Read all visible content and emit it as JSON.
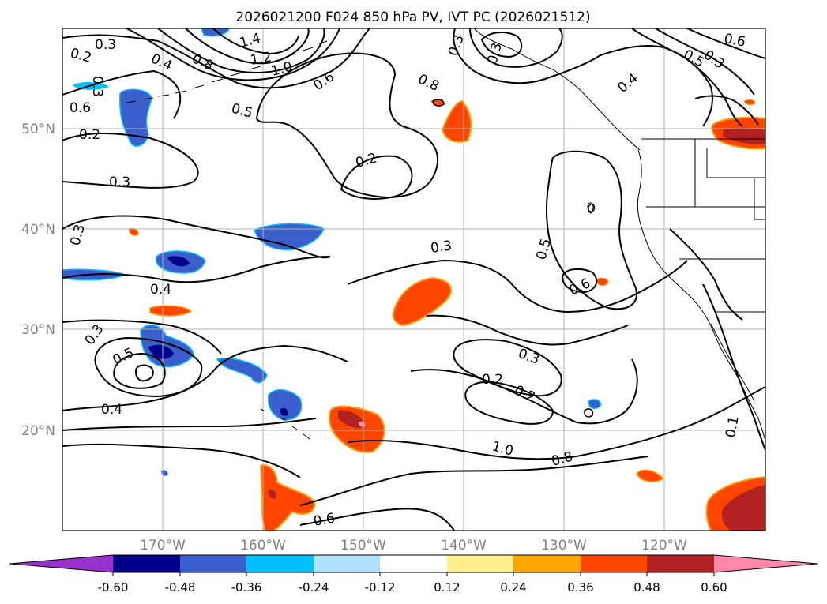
{
  "title": "2026021200 F024 850 hPa PV, IVT PC (2026021512)",
  "latitude_labels": [
    "50°N",
    "40°N",
    "30°N",
    "20°N"
  ],
  "longitude_labels": [
    "170°W",
    "160°W",
    "150°W",
    "140°W",
    "130°W",
    "120°W"
  ],
  "contour_labels": [
    "0.3",
    "0.4",
    "0.8",
    "1.4",
    "1.2",
    "1.0",
    "0.6",
    "0.5",
    "0.2",
    "0.3",
    "0.2",
    "0.3",
    "0.5",
    "0.6",
    "0.3",
    "0.4",
    "0.3",
    "0.5",
    "0.4",
    "0.3",
    "0.2",
    "0.2",
    "1.0",
    "0.8",
    "0.6",
    "0.8",
    "0.3",
    "0.3",
    "0.4",
    "0.6",
    "0.3",
    "0.5",
    "0.2",
    "0.3",
    "0.6",
    "0.1"
  ],
  "colorbar": {
    "tick_labels": [
      "-0.60",
      "-0.48",
      "-0.36",
      "-0.24",
      "-0.12",
      "0.12",
      "0.24",
      "0.36",
      "0.48",
      "0.60"
    ],
    "colors": [
      "#9932cc",
      "#00008b",
      "#3a5fcd",
      "#00bfff",
      "#b0e2ff",
      "#ffffff",
      "#fff08c",
      "#ffa500",
      "#ff4500",
      "#b22222",
      "#ff88aa"
    ]
  },
  "colors": {
    "grid": "#b0b0b0",
    "contour": "#000000",
    "axis_label": "#808080"
  }
}
